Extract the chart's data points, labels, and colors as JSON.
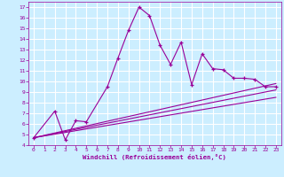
{
  "xlabel": "Windchill (Refroidissement éolien,°C)",
  "bg_color": "#cceeff",
  "grid_color": "#ffffff",
  "line_color": "#990099",
  "xlim": [
    -0.5,
    23.5
  ],
  "ylim": [
    4,
    17.5
  ],
  "xticks": [
    0,
    1,
    2,
    3,
    4,
    5,
    6,
    7,
    8,
    9,
    10,
    11,
    12,
    13,
    14,
    15,
    16,
    17,
    18,
    19,
    20,
    21,
    22,
    23
  ],
  "yticks": [
    4,
    5,
    6,
    7,
    8,
    9,
    10,
    11,
    12,
    13,
    14,
    15,
    16,
    17
  ],
  "main_x": [
    0,
    2,
    3,
    4,
    5,
    7,
    8,
    9,
    10,
    11,
    12,
    13,
    14,
    15,
    16,
    17,
    18,
    19,
    20,
    21,
    22,
    23
  ],
  "main_y": [
    4.7,
    7.2,
    4.5,
    6.3,
    6.2,
    9.5,
    12.2,
    14.8,
    17.0,
    16.2,
    13.4,
    11.6,
    13.7,
    9.7,
    12.6,
    11.2,
    11.1,
    10.3,
    10.3,
    10.2,
    9.5,
    9.5
  ],
  "line2_x": [
    0,
    23
  ],
  "line2_y": [
    4.7,
    9.8
  ],
  "line3_x": [
    0,
    23
  ],
  "line3_y": [
    4.7,
    9.2
  ],
  "line4_x": [
    0,
    23
  ],
  "line4_y": [
    4.7,
    8.5
  ]
}
